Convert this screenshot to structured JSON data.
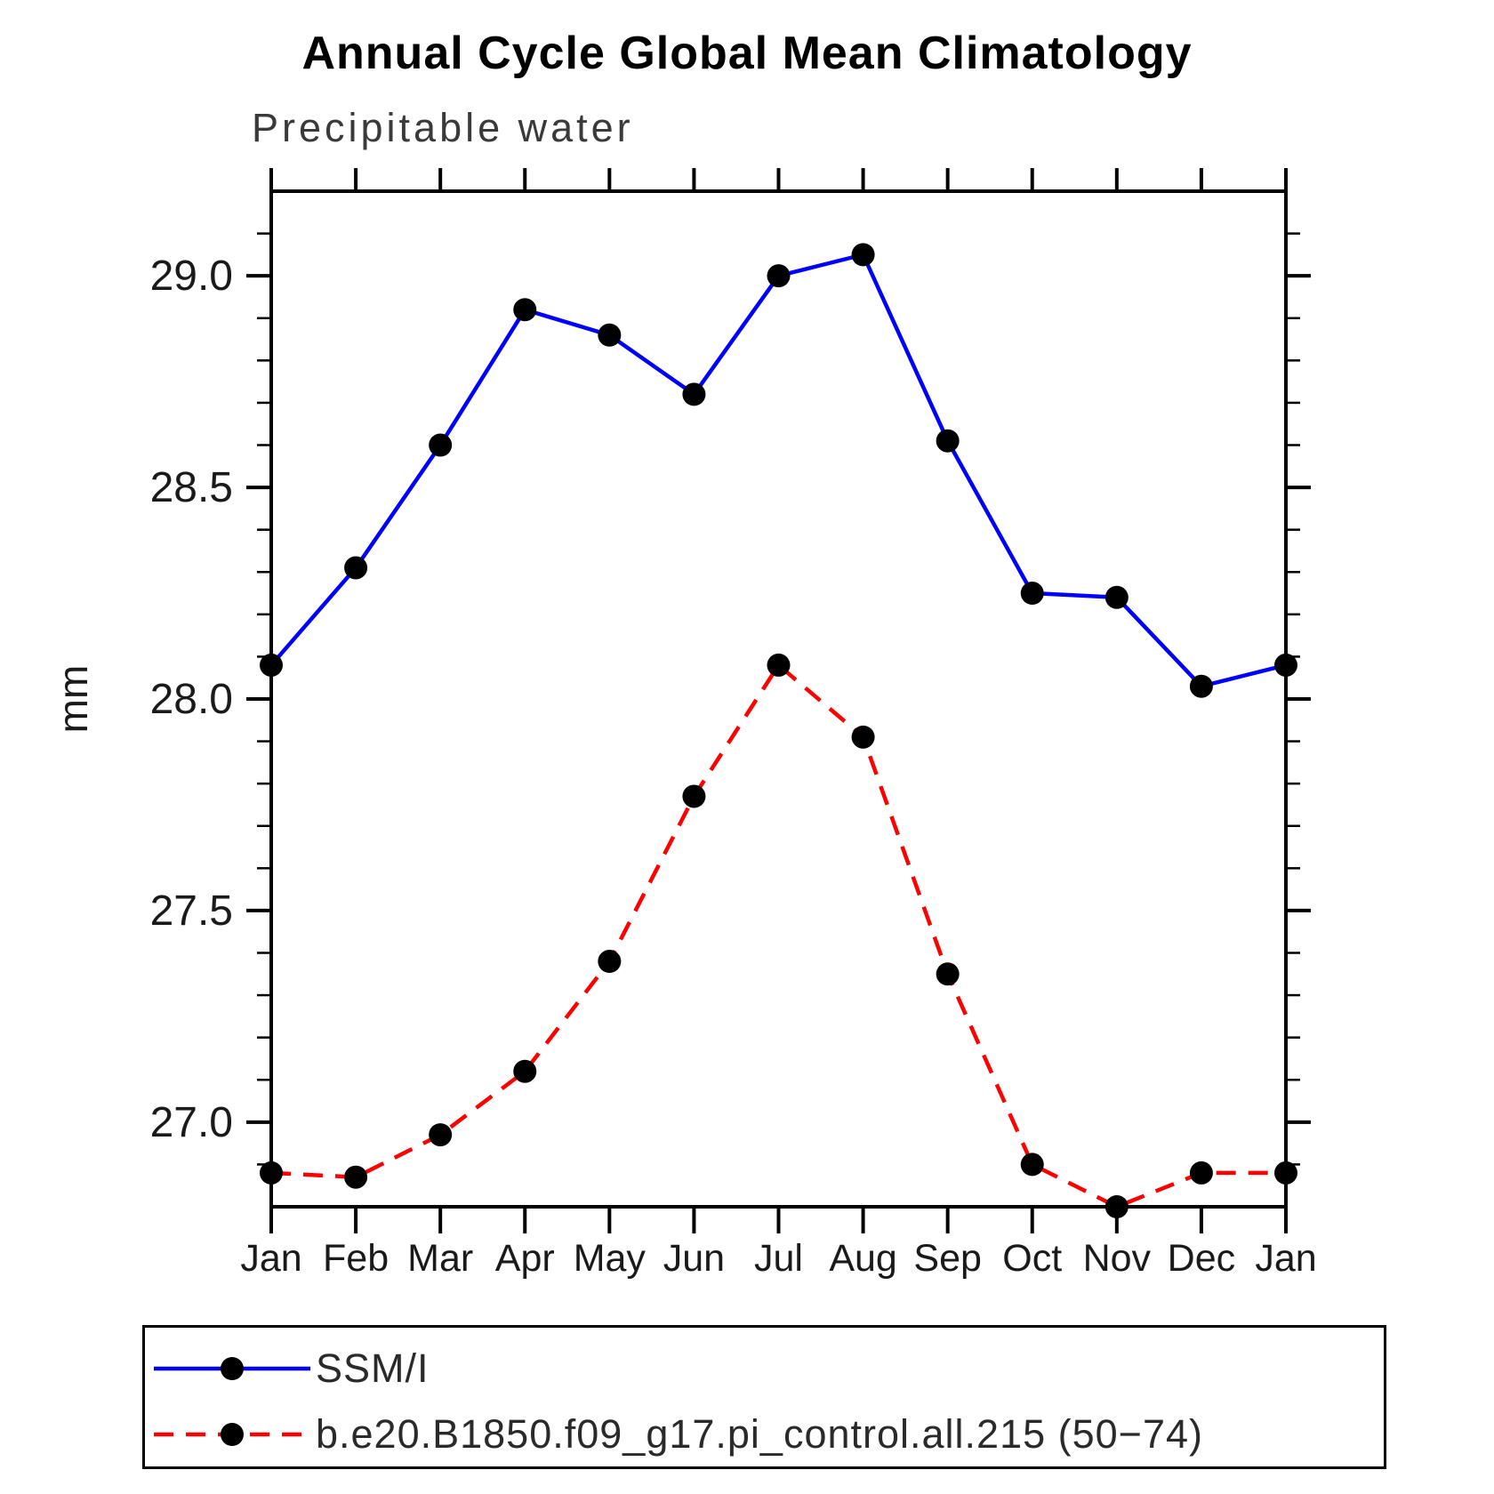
{
  "title": "Annual Cycle Global Mean Climatology",
  "chart_data": {
    "type": "line",
    "subtitle": "Precipitable water",
    "ylabel": "mm",
    "categories": [
      "Jan",
      "Feb",
      "Mar",
      "Apr",
      "May",
      "Jun",
      "Jul",
      "Aug",
      "Sep",
      "Oct",
      "Nov",
      "Dec",
      "Jan"
    ],
    "series": [
      {
        "name": "SSM/I",
        "color": "#0000ff",
        "line_style": "solid",
        "marker": "filled-circle",
        "marker_color": "#000000",
        "values": [
          28.08,
          28.31,
          28.6,
          28.92,
          28.86,
          28.72,
          29.0,
          29.05,
          28.61,
          28.25,
          28.24,
          28.03,
          28.08
        ]
      },
      {
        "name": "b.e20.B1850.f09_g17.pi_control.all.215 (50−74)",
        "color": "#ff0000",
        "line_style": "dashed",
        "marker": "filled-circle",
        "marker_color": "#000000",
        "values": [
          26.88,
          26.87,
          26.97,
          27.12,
          27.38,
          27.77,
          28.08,
          27.91,
          27.35,
          26.9,
          26.8,
          26.88,
          26.88
        ]
      }
    ],
    "ylim": [
      26.8,
      29.2
    ],
    "yticks_major": [
      27.0,
      27.5,
      28.0,
      28.5,
      29.0
    ],
    "ytick_labels": [
      "27.0",
      "27.5",
      "28.0",
      "28.5",
      "29.0"
    ],
    "ytick_minor_step": 0.1,
    "grid": "off",
    "legend_position": "bottom"
  }
}
